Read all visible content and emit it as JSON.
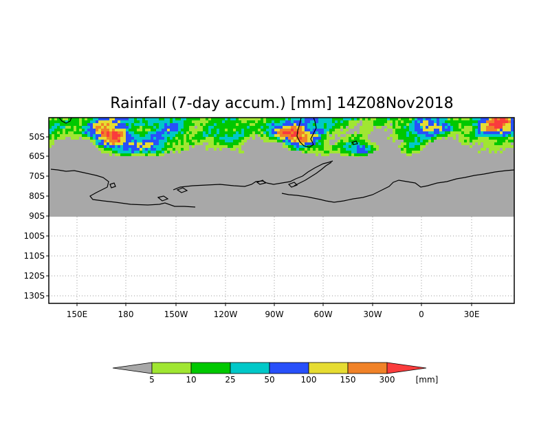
{
  "title": "Rainfall (7-day accum.) [mm] 14Z08Nov2018",
  "lat_labels": [
    "50S",
    "60S",
    "70S",
    "80S",
    "90S",
    "100S",
    "110S",
    "120S",
    "130S"
  ],
  "lon_labels": [
    "150E",
    "180",
    "150W",
    "120W",
    "90W",
    "60W",
    "30W",
    "0",
    "30E"
  ],
  "legend": {
    "unit": "[mm]",
    "levels": [
      "5",
      "10",
      "25",
      "50",
      "100",
      "150",
      "300"
    ],
    "colors": {
      "below_min": "#a8a8a8",
      "c_5_10": "#a0e632",
      "c_10_25": "#00c800",
      "c_25_50": "#00c8c8",
      "c_50_100": "#2850fa",
      "c_100_150": "#e6dc32",
      "c_150_300": "#f08228",
      "above_max": "#fa3c3c"
    }
  },
  "colors": {
    "no_rain_gray": "#a8a8a8",
    "land_outline": "#000000",
    "grid": "#999999"
  }
}
